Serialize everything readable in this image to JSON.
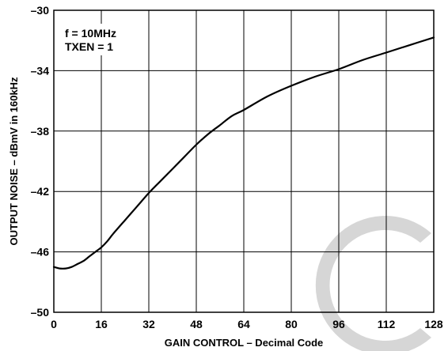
{
  "chart_data": {
    "type": "line",
    "title": "",
    "xlabel": "GAIN CONTROL – Decimal Code",
    "ylabel": "OUTPUT NOISE – dBmV in 160kHz",
    "xlim": [
      0,
      128
    ],
    "ylim": [
      -50,
      -30
    ],
    "xticks": [
      0,
      16,
      32,
      48,
      64,
      80,
      96,
      112,
      128
    ],
    "yticks": [
      -30,
      -34,
      -38,
      -42,
      -46,
      -50
    ],
    "xtick_labels": [
      "0",
      "16",
      "32",
      "48",
      "64",
      "80",
      "96",
      "112",
      "128"
    ],
    "ytick_labels": [
      "–30",
      "–34",
      "–38",
      "–42",
      "–46",
      "–50"
    ],
    "grid": true,
    "annotations": [
      "f = 10MHz",
      "TXEN = 1"
    ],
    "series": [
      {
        "color": "#000000",
        "x": [
          0,
          2,
          4,
          6,
          8,
          10,
          12,
          14,
          16,
          18,
          20,
          24,
          28,
          32,
          36,
          40,
          44,
          48,
          52,
          56,
          60,
          64,
          72,
          80,
          88,
          96,
          104,
          112,
          120,
          128
        ],
        "y": [
          -47.0,
          -47.1,
          -47.1,
          -47.0,
          -46.8,
          -46.6,
          -46.3,
          -46.0,
          -45.7,
          -45.3,
          -44.8,
          -43.9,
          -43.0,
          -42.1,
          -41.3,
          -40.5,
          -39.7,
          -38.9,
          -38.2,
          -37.6,
          -37.0,
          -36.6,
          -35.7,
          -35.0,
          -34.4,
          -33.9,
          -33.3,
          -32.8,
          -32.3,
          -31.8
        ]
      }
    ]
  }
}
